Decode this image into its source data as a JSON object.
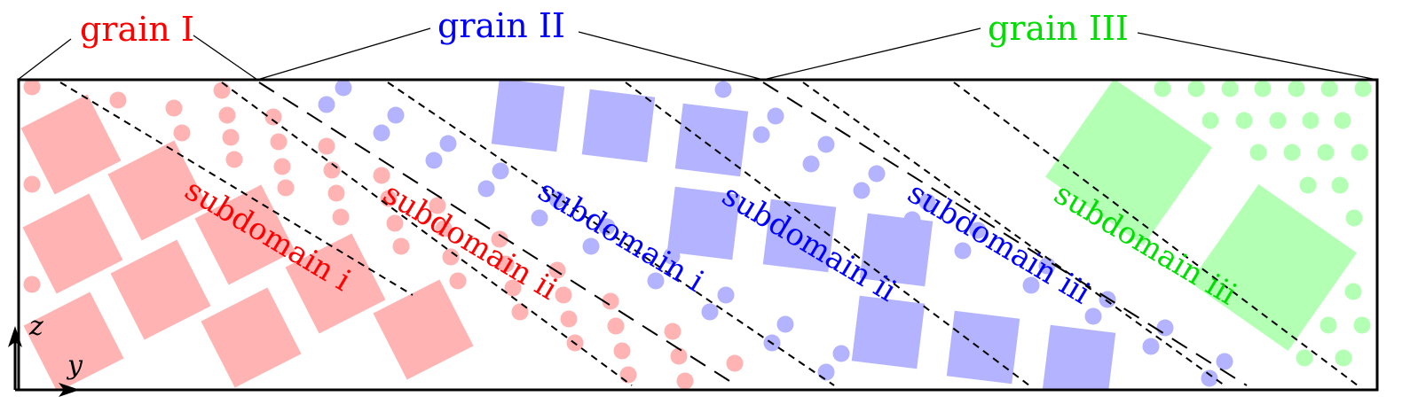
{
  "labels": {
    "grain_1": "grain I",
    "grain_2": "grain II",
    "grain_3": "grain III",
    "red_sub_1": "subdomain i",
    "red_sub_2": "subdomain ii",
    "blue_sub_1": "subdomain i",
    "blue_sub_2": "subdomain ii",
    "blue_sub_3": "subdomain iii",
    "green_sub_3": "subdomain iii",
    "axis_z": "z",
    "axis_y": "y"
  },
  "colors": {
    "grain_1": "#ff0000",
    "grain_2": "#0000ff",
    "grain_3": "#00dd00",
    "grain_1_fill": "#ffb3b3",
    "grain_2_fill": "#b3b3ff",
    "grain_3_fill": "#b3ffb3",
    "frame": "#000000"
  }
}
